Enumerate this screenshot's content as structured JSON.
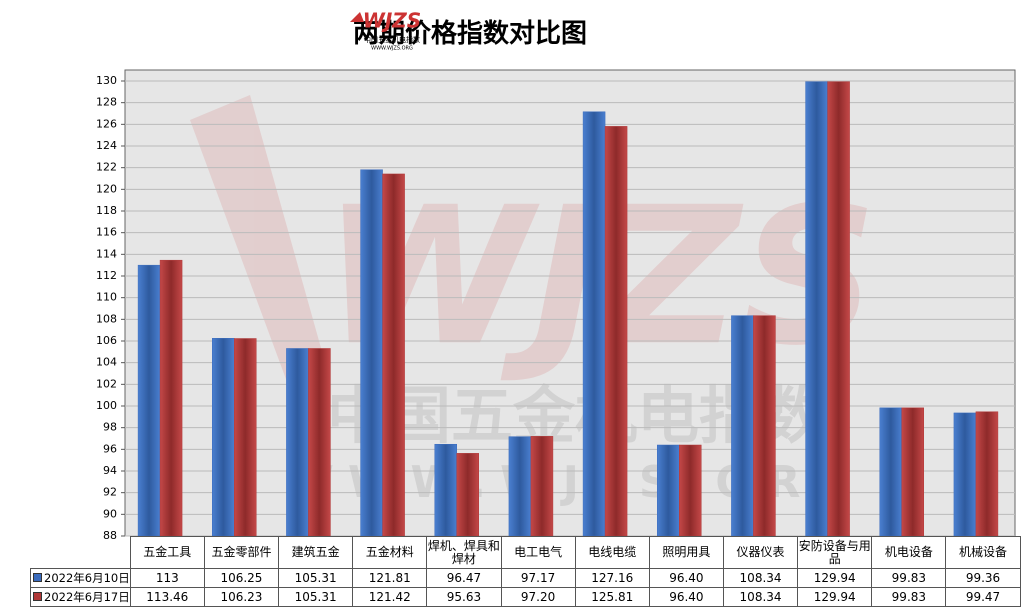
{
  "logo": {
    "mark": "WJZS",
    "name": "中国五金机电指数",
    "url": "WWW.WJZS.ORG"
  },
  "watermark": {
    "mark": "WJZS",
    "name": "中国五金机电指数",
    "url": "WWW.WJZS.ORG"
  },
  "chart_data": {
    "type": "bar",
    "title": "两期价格指数对比图",
    "categories": [
      "五金工具",
      "五金零部件",
      "建筑五金",
      "五金材料",
      "焊机、焊具和焊材",
      "电工电气",
      "电线电缆",
      "照明用具",
      "仪器仪表",
      "安防设备与用品",
      "机电设备",
      "机械设备"
    ],
    "series": [
      {
        "name": "2022年6月10日",
        "color": "#3a6bbd",
        "values": [
          113,
          106.25,
          105.31,
          121.81,
          96.47,
          97.17,
          127.16,
          96.4,
          108.34,
          129.94,
          99.83,
          99.36
        ],
        "value_labels": [
          "113",
          "106.25",
          "105.31",
          "121.81",
          "96.47",
          "97.17",
          "127.16",
          "96.40",
          "108.34",
          "129.94",
          "99.83",
          "99.36"
        ]
      },
      {
        "name": "2022年6月17日",
        "color": "#b03838",
        "values": [
          113.46,
          106.23,
          105.31,
          121.42,
          95.63,
          97.2,
          125.81,
          96.4,
          108.34,
          129.94,
          99.83,
          99.47
        ],
        "value_labels": [
          "113.46",
          "106.23",
          "105.31",
          "121.42",
          "95.63",
          "97.20",
          "125.81",
          "96.40",
          "108.34",
          "129.94",
          "99.83",
          "99.47"
        ]
      }
    ],
    "ylim": [
      88,
      130
    ],
    "yticks": [
      88,
      90,
      92,
      94,
      96,
      98,
      100,
      102,
      104,
      106,
      108,
      110,
      112,
      114,
      116,
      118,
      120,
      122,
      124,
      126,
      128,
      130
    ],
    "grid": true
  }
}
